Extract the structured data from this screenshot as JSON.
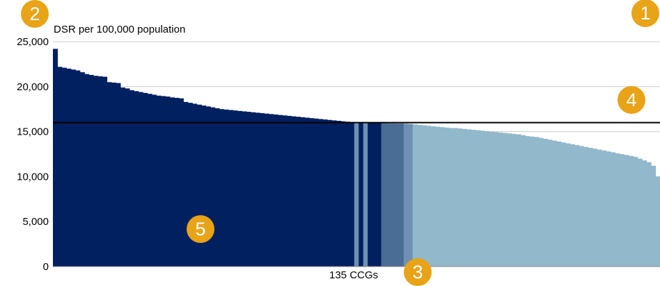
{
  "annotations": {
    "badge_1": "1",
    "badge_2": "2",
    "badge_3": "3",
    "badge_4": "4",
    "badge_5": "5"
  },
  "colors": {
    "significantly_higher": "#002060",
    "not_significant_above": "#4a6d96",
    "significantly_lower": "#92b8cb",
    "light_stripe": "#6f90b3",
    "reference_line": "#000000",
    "gridline": "#cccccc",
    "badge": "#e8a317"
  },
  "chart_data": {
    "type": "bar",
    "title": "",
    "ylabel": "DSR per 100,000 population",
    "xlabel": "135 CCGs",
    "ylim": [
      0,
      25000
    ],
    "yticks": [
      0,
      5000,
      10000,
      15000,
      20000,
      25000
    ],
    "ytick_labels": [
      "0",
      "5,000",
      "10,000",
      "15,000",
      "20,000",
      "25,000"
    ],
    "grid": true,
    "reference_line": 16000,
    "categories_count": 135,
    "values": [
      24200,
      22200,
      22100,
      22000,
      21900,
      21800,
      21600,
      21400,
      21300,
      21200,
      21150,
      21100,
      20500,
      20450,
      20400,
      19900,
      19800,
      19600,
      19500,
      19400,
      19300,
      19200,
      19100,
      19000,
      18950,
      18900,
      18800,
      18750,
      18700,
      18300,
      18200,
      18100,
      18000,
      17900,
      17800,
      17700,
      17600,
      17500,
      17450,
      17400,
      17350,
      17300,
      17250,
      17200,
      17150,
      17100,
      17050,
      17000,
      16950,
      16900,
      16850,
      16800,
      16750,
      16700,
      16650,
      16600,
      16550,
      16500,
      16450,
      16400,
      16350,
      16300,
      16250,
      16200,
      16150,
      16100,
      16050,
      16050,
      16000,
      16000,
      15980,
      15950,
      15950,
      15930,
      15920,
      15910,
      15900,
      15900,
      15880,
      15850,
      15800,
      15750,
      15700,
      15650,
      15600,
      15550,
      15500,
      15450,
      15400,
      15400,
      15350,
      15300,
      15250,
      15200,
      15150,
      15100,
      15050,
      15000,
      14950,
      14900,
      14850,
      14800,
      14750,
      14700,
      14600,
      14500,
      14450,
      14400,
      14300,
      14200,
      14100,
      14000,
      13900,
      13800,
      13700,
      13600,
      13500,
      13400,
      13300,
      13200,
      13100,
      13000,
      12900,
      12800,
      12700,
      12600,
      12500,
      12400,
      12300,
      12200,
      12000,
      11800,
      11600,
      11200,
      10000
    ],
    "colors": [
      "sh",
      "sh",
      "sh",
      "sh",
      "sh",
      "sh",
      "sh",
      "sh",
      "sh",
      "sh",
      "sh",
      "sh",
      "sh",
      "sh",
      "sh",
      "sh",
      "sh",
      "sh",
      "sh",
      "sh",
      "sh",
      "sh",
      "sh",
      "sh",
      "sh",
      "sh",
      "sh",
      "sh",
      "sh",
      "sh",
      "sh",
      "sh",
      "sh",
      "sh",
      "sh",
      "sh",
      "sh",
      "sh",
      "sh",
      "sh",
      "sh",
      "sh",
      "sh",
      "sh",
      "sh",
      "sh",
      "sh",
      "sh",
      "sh",
      "sh",
      "sh",
      "sh",
      "sh",
      "sh",
      "sh",
      "sh",
      "sh",
      "sh",
      "sh",
      "sh",
      "sh",
      "sh",
      "sh",
      "sh",
      "sh",
      "sh",
      "sh",
      "ls",
      "sh",
      "ls",
      "sh",
      "sh",
      "sh",
      "ns",
      "ns",
      "ns",
      "ns",
      "ns",
      "ls",
      "ls",
      "sl",
      "sl",
      "sl",
      "sl",
      "sl",
      "sl",
      "sl",
      "sl",
      "sl",
      "sl",
      "sl",
      "sl",
      "sl",
      "sl",
      "sl",
      "sl",
      "sl",
      "sl",
      "sl",
      "sl",
      "sl",
      "sl",
      "sl",
      "sl",
      "sl",
      "sl",
      "sl",
      "sl",
      "sl",
      "sl",
      "sl",
      "sl",
      "sl",
      "sl",
      "sl",
      "sl",
      "sl",
      "sl",
      "sl",
      "sl",
      "sl",
      "sl",
      "sl",
      "sl",
      "sl",
      "sl",
      "sl",
      "sl",
      "sl",
      "sl",
      "sl",
      "sl",
      "sl",
      "sl",
      "sl"
    ]
  }
}
